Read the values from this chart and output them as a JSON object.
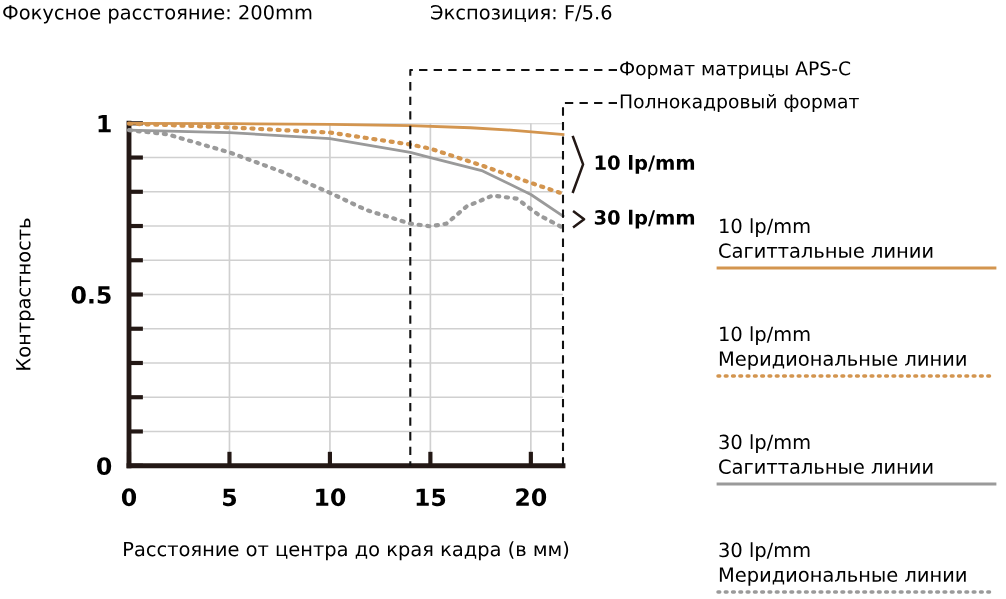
{
  "chart_data": {
    "type": "line",
    "title": "Фокусное расстояние: 200mm",
    "subtitle": "Экспозиция: F/5.6",
    "xlabel": "Расстояние от центра до края кадра (в мм)",
    "ylabel": "Контрастность",
    "xlim": [
      0,
      21.6
    ],
    "xticks": [
      0,
      5,
      10,
      15,
      20
    ],
    "ylim": [
      0,
      1
    ],
    "yticks": [
      0,
      {
        "value": 0.1,
        "label": null
      },
      {
        "value": 0.2,
        "label": null
      },
      {
        "value": 0.3,
        "label": null
      },
      {
        "value": 0.4,
        "label": null
      },
      0.5,
      {
        "value": 0.6,
        "label": null
      },
      {
        "value": 0.7,
        "label": null
      },
      {
        "value": 0.8,
        "label": null
      },
      {
        "value": 0.9,
        "label": null
      },
      1
    ],
    "grid": true,
    "legend": "right",
    "series": [
      {
        "name": "10 lp/mm\nСагиттальные линии",
        "color": "#d3954f",
        "line_style": "solid",
        "x": [
          0,
          5,
          10,
          14,
          17,
          19,
          21.6
        ],
        "values": [
          1.0,
          0.999,
          0.997,
          0.993,
          0.987,
          0.98,
          0.967
        ]
      },
      {
        "name": "10 lp/mm\nМеридиональные линии",
        "color": "#d3954f",
        "line_style": "dotted",
        "x": [
          0,
          5,
          10,
          14,
          15,
          17.6,
          20,
          21.6
        ],
        "values": [
          0.999,
          0.988,
          0.973,
          0.938,
          0.926,
          0.876,
          0.826,
          0.794
        ]
      },
      {
        "name": "30 lp/mm\nСагиттальные линии",
        "color": "#9a9a9a",
        "line_style": "solid",
        "x": [
          0,
          5,
          10,
          14,
          15,
          17.6,
          20,
          21.6
        ],
        "values": [
          0.98,
          0.973,
          0.955,
          0.915,
          0.9,
          0.861,
          0.792,
          0.729
        ]
      },
      {
        "name": "30 lp/mm\nМеридиональные линии",
        "color": "#9a9a9a",
        "line_style": "dotted",
        "x": [
          0,
          1.9,
          5,
          7.5,
          10,
          11.8,
          14,
          15,
          15.8,
          16.8,
          18.1,
          19.3,
          20.4,
          21.6
        ],
        "values": [
          0.98,
          0.968,
          0.915,
          0.861,
          0.797,
          0.747,
          0.707,
          0.699,
          0.707,
          0.757,
          0.789,
          0.78,
          0.732,
          0.695
        ]
      }
    ],
    "ref_lines": [
      {
        "axis": "x",
        "value": 14.0,
        "label": "Формат матрицы APS-C",
        "color": "#111111",
        "line_style": "dashed"
      },
      {
        "axis": "x",
        "value": 21.6,
        "label": "Полнокадровый формат",
        "color": "#111111",
        "line_style": "dashed"
      }
    ],
    "annotations": [
      {
        "text": "10 lp/mm",
        "x": 21.6,
        "y": 0.88
      },
      {
        "text": "30 lp/mm",
        "x": 21.6,
        "y": 0.72
      }
    ]
  }
}
